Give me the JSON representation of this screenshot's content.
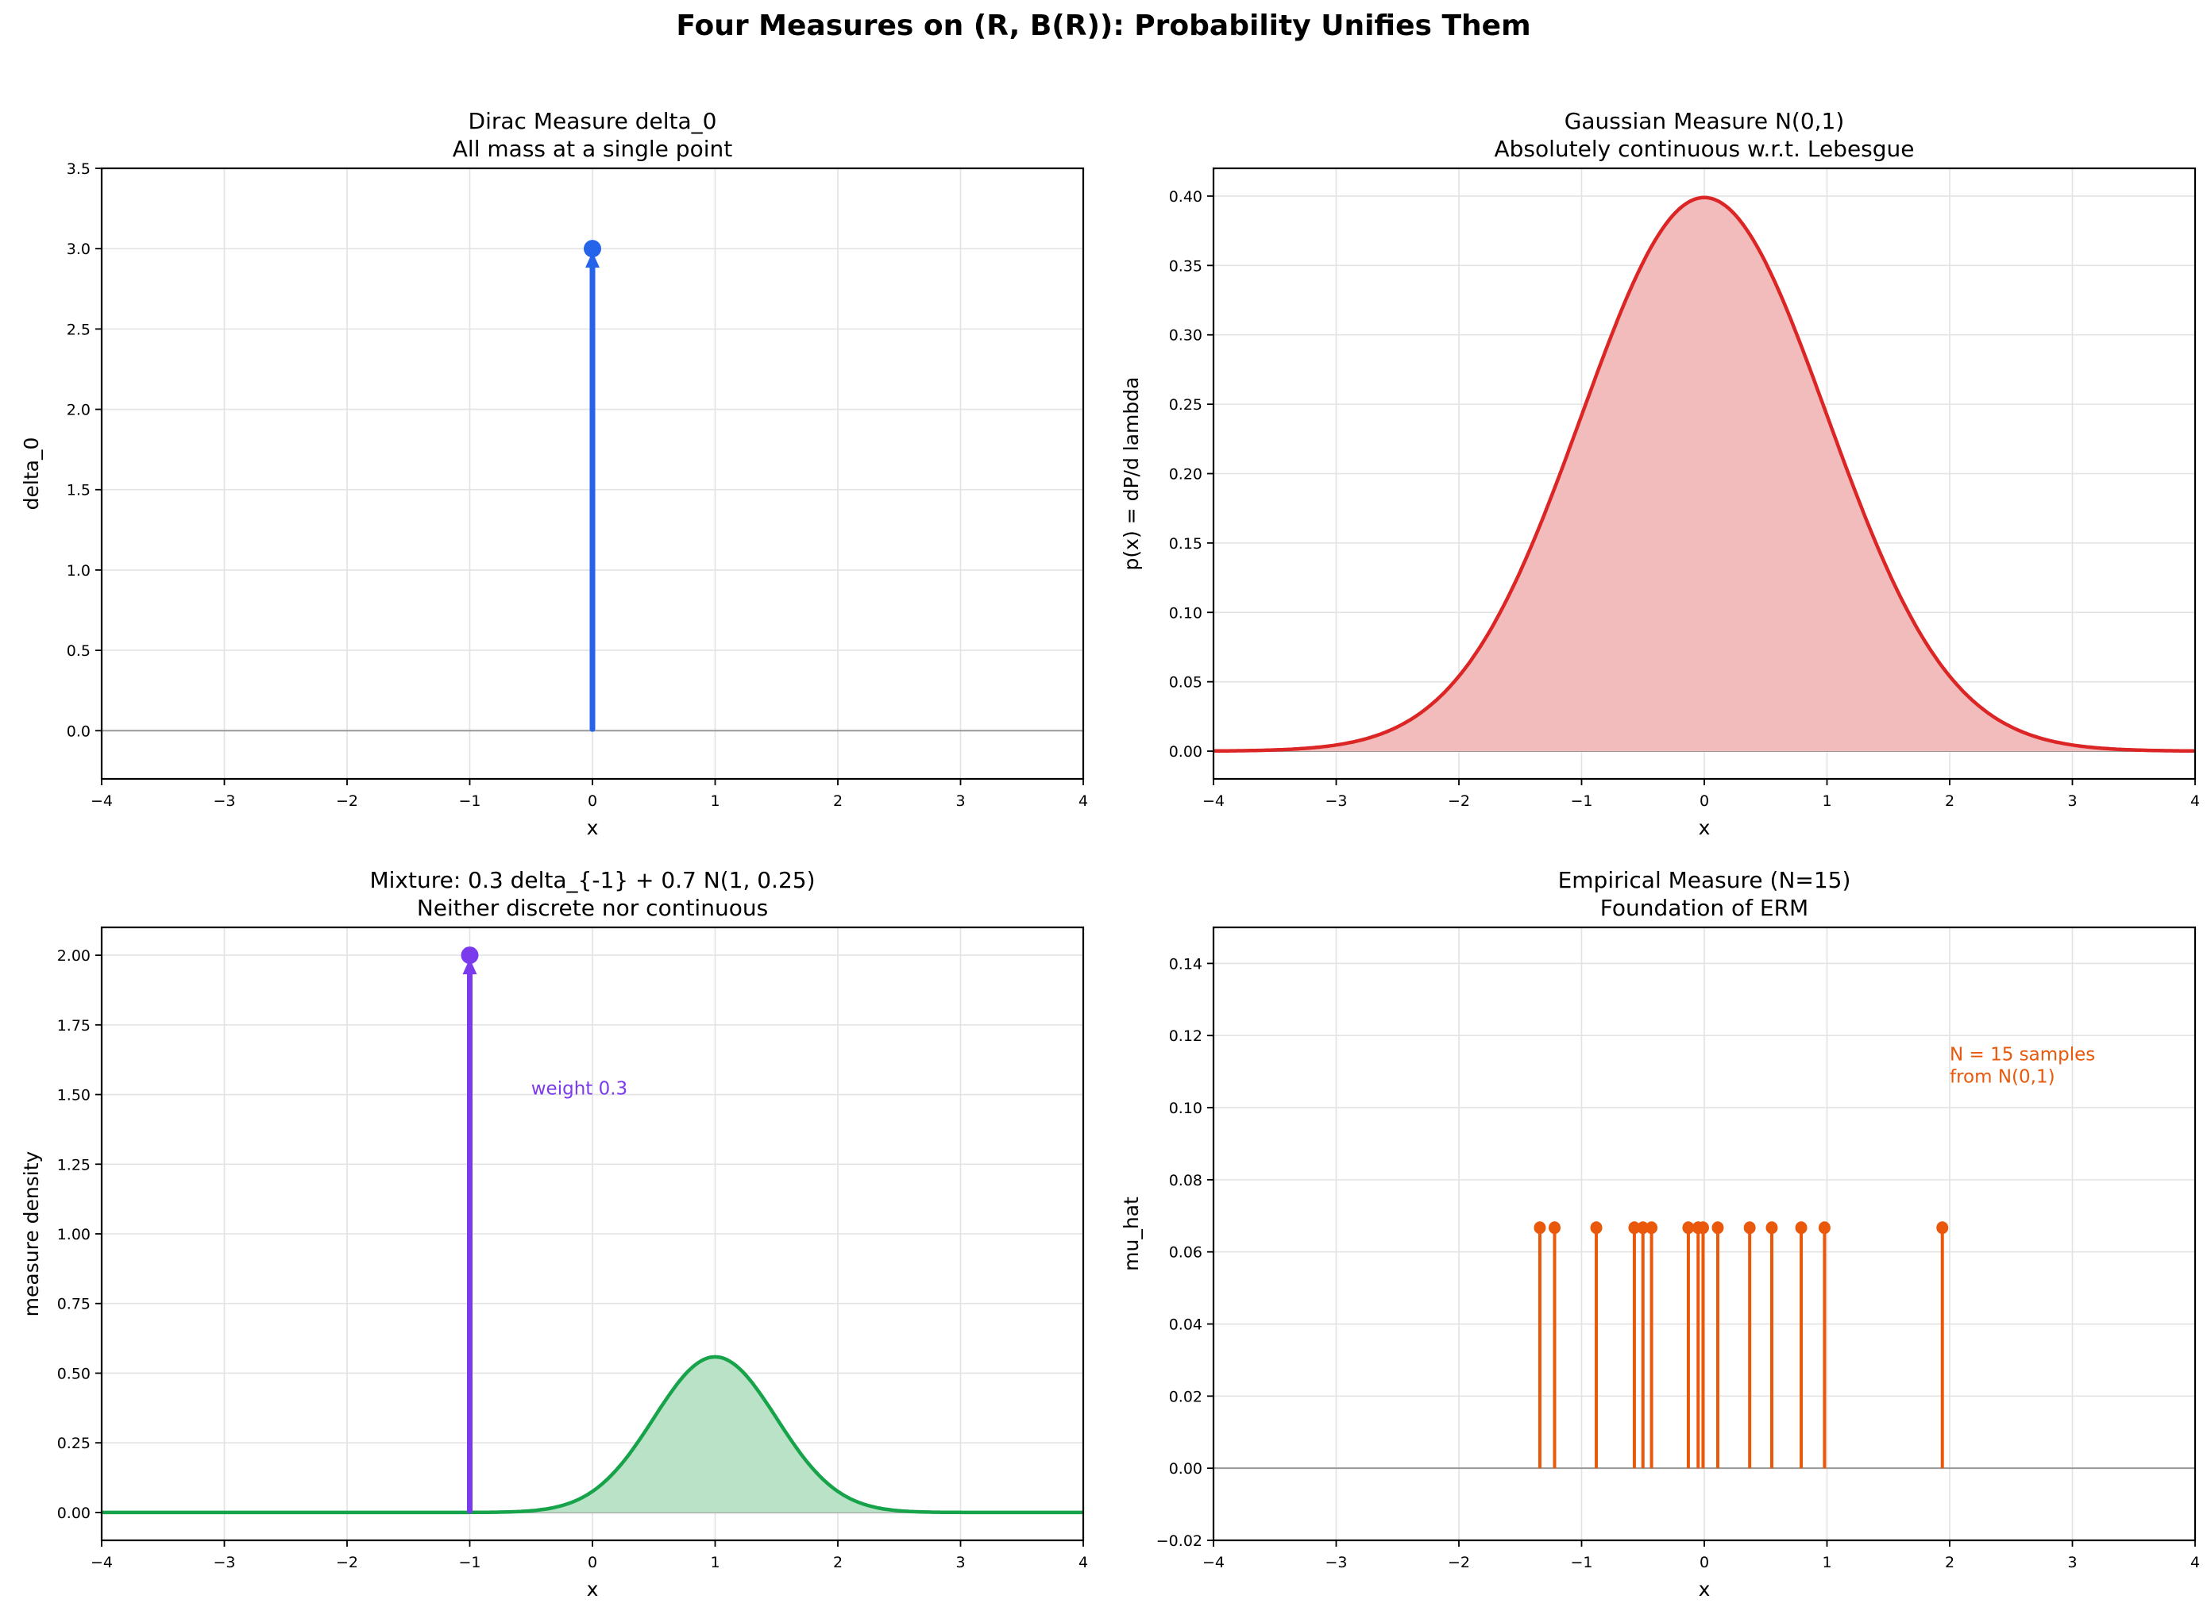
{
  "suptitle": "Four Measures on (R, B(R)): Probability Unifies Them",
  "chart_data": [
    {
      "type": "stem",
      "title": "Dirac Measure delta_0",
      "subtitle": "All mass at a single point",
      "xlabel": "x",
      "ylabel": "delta_0",
      "xlim": [
        -4,
        4
      ],
      "ylim": [
        -0.3,
        3.5
      ],
      "xticks": [
        -4,
        -3,
        -2,
        -1,
        0,
        1,
        2,
        3,
        4
      ],
      "yticks": [
        0.0,
        0.5,
        1.0,
        1.5,
        2.0,
        2.5,
        3.0,
        3.5
      ],
      "ytick_decimals": 1,
      "grid": true,
      "arrows": [
        {
          "x": 0,
          "y": 3.0,
          "color": "#2563eb"
        }
      ]
    },
    {
      "type": "area",
      "title": "Gaussian Measure N(0,1)",
      "subtitle": "Absolutely continuous w.r.t. Lebesgue",
      "xlabel": "x",
      "ylabel": "p(x) = dP/d lambda",
      "xlim": [
        -4,
        4
      ],
      "ylim": [
        -0.02,
        0.42
      ],
      "xticks": [
        -4,
        -3,
        -2,
        -1,
        0,
        1,
        2,
        3,
        4
      ],
      "yticks": [
        0.0,
        0.05,
        0.1,
        0.15,
        0.2,
        0.25,
        0.3,
        0.35,
        0.4
      ],
      "ytick_decimals": 2,
      "grid": true,
      "curve": {
        "weight": 1.0,
        "mean": 0,
        "sd": 1,
        "color": "#dc2626",
        "fill": "#f2bcbc"
      }
    },
    {
      "type": "mixed",
      "title": "Mixture: 0.3 delta_{-1} + 0.7 N(1, 0.25)",
      "subtitle": "Neither discrete nor continuous",
      "xlabel": "x",
      "ylabel": "measure density",
      "xlim": [
        -4,
        4
      ],
      "ylim": [
        -0.1,
        2.1
      ],
      "xticks": [
        -4,
        -3,
        -2,
        -1,
        0,
        1,
        2,
        3,
        4
      ],
      "yticks": [
        0.0,
        0.25,
        0.5,
        0.75,
        1.0,
        1.25,
        1.5,
        1.75,
        2.0
      ],
      "ytick_decimals": 2,
      "grid": true,
      "arrows": [
        {
          "x": -1,
          "y": 2.0,
          "color": "#7c3aed"
        }
      ],
      "curve": {
        "weight": 0.7,
        "mean": 1,
        "sd": 0.5,
        "color": "#16a34a",
        "fill": "#b9e2c6"
      },
      "annotation": {
        "text": "weight 0.3",
        "x": -0.5,
        "y": 1.5,
        "color": "#7c3aed"
      }
    },
    {
      "type": "stem",
      "title": "Empirical Measure (N=15)",
      "subtitle": "Foundation of ERM",
      "xlabel": "x",
      "ylabel": "mu_hat",
      "xlim": [
        -4,
        4
      ],
      "ylim": [
        -0.02,
        0.15
      ],
      "xticks": [
        -4,
        -3,
        -2,
        -1,
        0,
        1,
        2,
        3,
        4
      ],
      "yticks": [
        -0.02,
        0.0,
        0.02,
        0.04,
        0.06,
        0.08,
        0.1,
        0.12,
        0.14
      ],
      "ytick_decimals": 2,
      "grid": true,
      "stems": {
        "x": [
          -1.34,
          -1.22,
          -0.88,
          -0.57,
          -0.5,
          -0.43,
          -0.13,
          -0.05,
          -0.01,
          0.11,
          0.37,
          0.55,
          0.79,
          0.98,
          1.94
        ],
        "y": 0.0667,
        "color": "#ea580c"
      },
      "annotation": {
        "text": "N = 15 samples\nfrom N(0,1)",
        "x": 2.0,
        "y": 0.107,
        "color": "#ea580c"
      }
    }
  ]
}
